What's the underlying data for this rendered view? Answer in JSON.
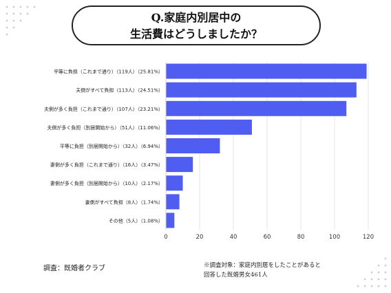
{
  "title": {
    "line1": "Q.家庭内別居中の",
    "line2": "生活費はどうしましたか？"
  },
  "chart_data": {
    "type": "bar",
    "orientation": "horizontal",
    "categories": [
      "平等に負担（これまで通り）（119人）（25.81%）",
      "夫側がすべて負担（113人）（24.51%）",
      "夫側が多く負担（これまで通り）（107人）（23.21%）",
      "夫側が多く負担（別居開始から）（51人）（11.06%）",
      "平等に負担（別居開始から）（32人）（6.94%）",
      "妻側が多く負担（これまで通り）（16人）（3.47%）",
      "妻側が多く負担（別居開始から）（10人）（2.17%）",
      "妻側がすべて負担（8人）（1.74%）",
      "その他（5人）（1.08%）"
    ],
    "values": [
      119,
      113,
      107,
      51,
      32,
      16,
      10,
      8,
      5
    ],
    "xlim": [
      0,
      120
    ],
    "xticks": [
      0,
      20,
      40,
      60,
      80,
      100,
      120
    ],
    "grid": true,
    "bar_color": "#4f5ef0"
  },
  "source": "調査：既婚者クラブ",
  "note": {
    "line1": "※調査対象：家庭内別居をしたことがあると",
    "line2": "回答した既婚男女461人"
  }
}
